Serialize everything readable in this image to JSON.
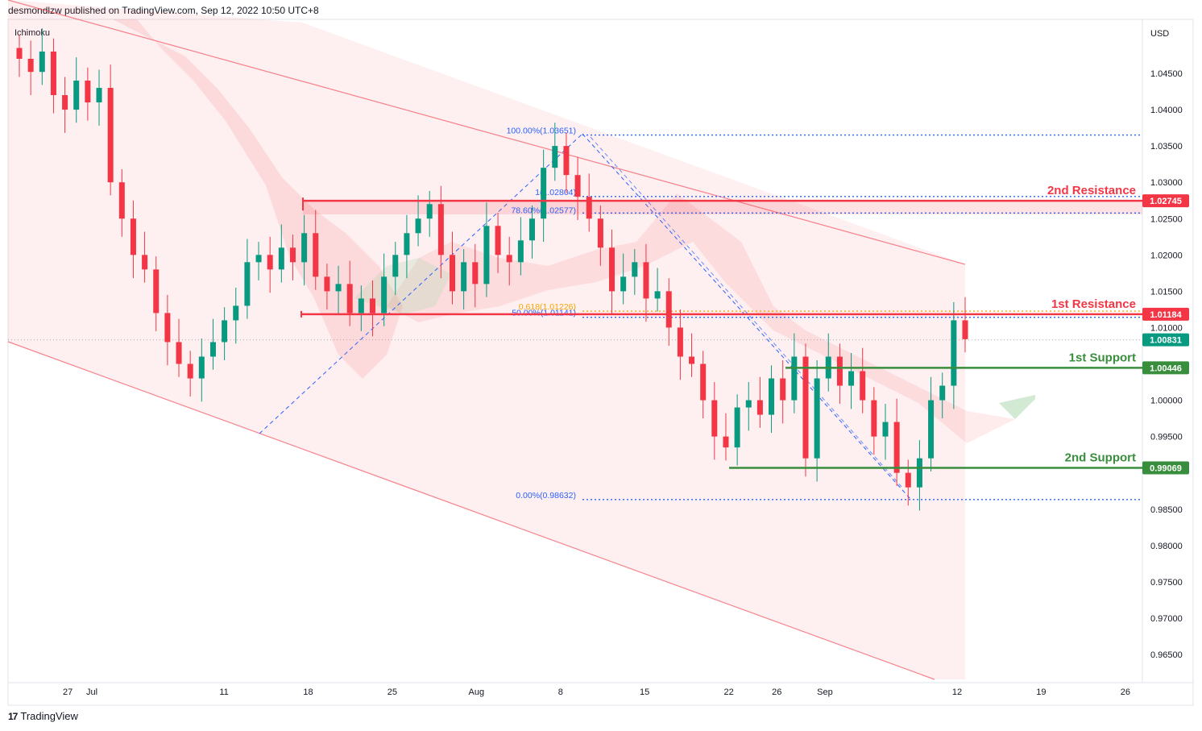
{
  "header": {
    "publish_line": "desmondlzw published on TradingView.com, Sep 12, 2022 10:50 UTC+8",
    "indicator": "Ichimoku"
  },
  "footer": {
    "logo_glyph": "17",
    "brand": "TradingView"
  },
  "chart_data": {
    "type": "candlestick",
    "symbol_currency": "USD",
    "y_ticks": [
      "1.04500",
      "1.04000",
      "1.03500",
      "1.03000",
      "1.02500",
      "1.02000",
      "1.01500",
      "1.01000",
      "1.00000",
      "0.99500",
      "0.98500",
      "0.98000",
      "0.97500",
      "0.97000",
      "0.96500"
    ],
    "x_ticks": [
      {
        "label": "27",
        "x": 27
      },
      {
        "label": "Jul",
        "x": 29
      },
      {
        "label": "11",
        "x": 40
      },
      {
        "label": "18",
        "x": 47
      },
      {
        "label": "25",
        "x": 54
      },
      {
        "label": "Aug",
        "x": 61
      },
      {
        "label": "8",
        "x": 68
      },
      {
        "label": "15",
        "x": 75
      },
      {
        "label": "22",
        "x": 82
      },
      {
        "label": "26",
        "x": 86
      },
      {
        "label": "Sep",
        "x": 90
      },
      {
        "label": "12",
        "x": 101
      },
      {
        "label": "19",
        "x": 108
      },
      {
        "label": "26",
        "x": 115
      }
    ],
    "levels": [
      {
        "name": "2nd Resistance",
        "price": 1.02745,
        "label": "1.02745",
        "color": "#f23645"
      },
      {
        "name": "1st Resistance",
        "price": 1.01184,
        "label": "1.01184",
        "color": "#f23645"
      },
      {
        "name": "1st Support",
        "price": 1.00446,
        "label": "1.00446",
        "color": "#388e3c"
      },
      {
        "name": "2nd Support",
        "price": 0.99069,
        "label": "0.99069",
        "color": "#388e3c"
      }
    ],
    "last_price": {
      "price": 1.00831,
      "label": "1.00831",
      "color": "#089981"
    },
    "fib_levels": [
      {
        "text": "100.00%(1.03651)",
        "price": 1.03651,
        "color": "#2962ff"
      },
      {
        "text": "1(1.02804)",
        "price": 1.02804,
        "color": "#2962ff"
      },
      {
        "text": "78.60%(1.02577)",
        "price": 1.02577,
        "color": "#2962ff"
      },
      {
        "text": "0.618(1.01226)",
        "price": 1.01226,
        "color": "#f7a600"
      },
      {
        "text": "50.00%(1.01141)",
        "price": 1.01141,
        "color": "#2962ff"
      },
      {
        "text": "0.00%(0.98632)",
        "price": 0.98632,
        "color": "#2962ff"
      }
    ],
    "closes": [
      1.047,
      1.0452,
      1.048,
      1.042,
      1.04,
      1.044,
      1.041,
      1.043,
      1.03,
      1.025,
      1.02,
      1.018,
      1.012,
      1.008,
      1.005,
      1.003,
      1.006,
      1.008,
      1.011,
      1.013,
      1.019,
      1.02,
      1.018,
      1.021,
      1.019,
      1.023,
      1.017,
      1.015,
      1.016,
      1.012,
      1.014,
      1.012,
      1.017,
      1.02,
      1.023,
      1.025,
      1.027,
      1.02,
      1.015,
      1.019,
      1.016,
      1.024,
      1.02,
      1.019,
      1.022,
      1.025,
      1.032,
      1.035,
      1.031,
      1.028,
      1.025,
      1.021,
      1.015,
      1.017,
      1.019,
      1.014,
      1.015,
      1.01,
      1.006,
      1.005,
      1.0,
      0.995,
      0.9935,
      0.999,
      1.0,
      0.998,
      1.003,
      1.0,
      1.006,
      0.992,
      1.003,
      1.006,
      1.002,
      1.004,
      1.0,
      0.995,
      0.997,
      0.99,
      0.988,
      0.992,
      1.0,
      1.002,
      1.011,
      1.0084
    ],
    "up_color": "#089981",
    "down_color": "#f23645"
  }
}
